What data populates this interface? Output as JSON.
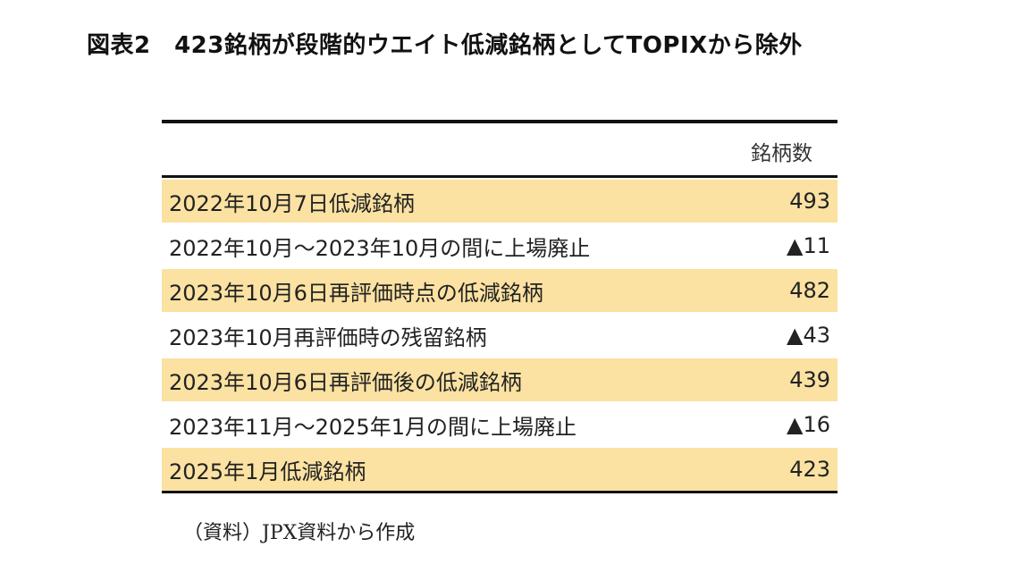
{
  "title": "図表2　423銘柄が段階的ウエイト低減銘柄としてTOPIXから除外",
  "table": {
    "column_header": "銘柄数",
    "rows": [
      {
        "label": "2022年10月7日低減銘柄",
        "value": "493",
        "shaded": true
      },
      {
        "label": "2022年10月～2023年10月の間に上場廃止",
        "value": "▲11",
        "shaded": false
      },
      {
        "label": "2023年10月6日再評価時点の低減銘柄",
        "value": "482",
        "shaded": true
      },
      {
        "label": "2023年10月再評価時の残留銘柄",
        "value": "▲43",
        "shaded": false
      },
      {
        "label": "2023年10月6日再評価後の低減銘柄",
        "value": "439",
        "shaded": true
      },
      {
        "label": "2023年11月～2025年1月の間に上場廃止",
        "value": "▲16",
        "shaded": false
      },
      {
        "label": "2025年1月低減銘柄",
        "value": "423",
        "shaded": true
      }
    ]
  },
  "source": "（資料）JPX資料から作成",
  "colors": {
    "row_highlight": "#fbe2a2",
    "rule": "#111111"
  }
}
